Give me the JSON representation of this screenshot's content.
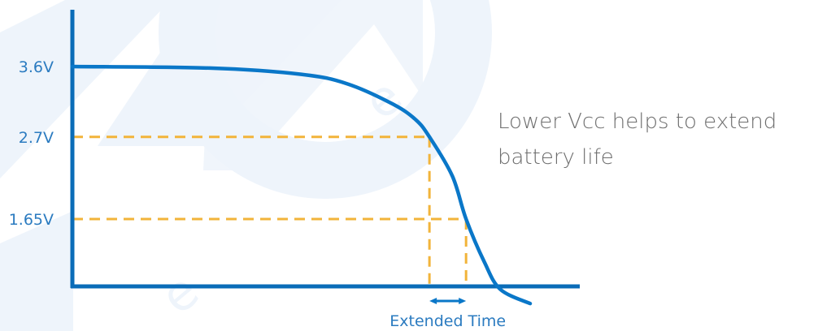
{
  "annotation": {
    "line1": "Lower Vcc helps to extend",
    "line2": "battery life"
  },
  "chart_data": {
    "type": "line",
    "title": "",
    "xlabel": "",
    "ylabel": "",
    "y_tick_labels": [
      "3.6V",
      "2.7V",
      "1.65V"
    ],
    "series": [
      {
        "x": [
          0,
          30,
          50,
          60,
          70,
          75,
          78,
          83,
          86,
          90,
          93.5,
          100
        ],
        "values": [
          3.6,
          3.58,
          3.5,
          3.38,
          3.12,
          2.92,
          2.7,
          2.2,
          1.65,
          1.1,
          0.75,
          0.57
        ]
      }
    ],
    "reference_levels": [
      2.7,
      1.65
    ],
    "range_annotation": {
      "label": "Extended Time"
    },
    "colors": {
      "axis": "#0a6cb8",
      "curve": "#0a77c8",
      "guides": "#f2b43a",
      "tick_text": "#2b7bc0",
      "watermark": "#eef4fb"
    }
  }
}
